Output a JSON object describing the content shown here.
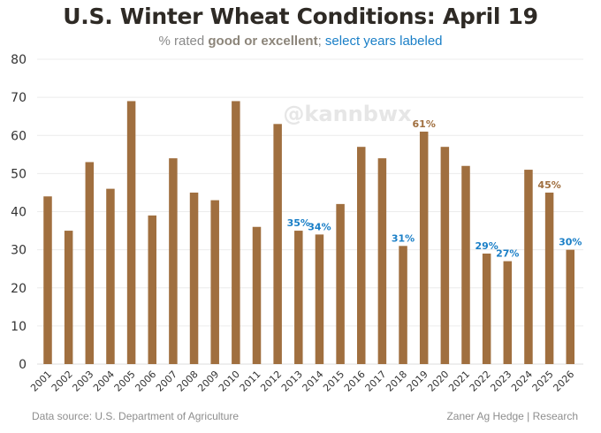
{
  "header": {
    "title": "U.S. Winter Wheat Conditions: April 19",
    "subtitle_prefix": "% rated ",
    "subtitle_bold": "good or excellent",
    "subtitle_sep": "; ",
    "subtitle_highlight": "select years labeled"
  },
  "watermark": "@kannbwx",
  "footer": {
    "source": "Data source: U.S. Department of Agriculture",
    "credit": "Zaner Ag Hedge | Research"
  },
  "colors": {
    "bar": "#a06f3f",
    "label_blue": "#1a7fc7",
    "label_brown": "#a06f3f",
    "grid": "#ececec",
    "axis_text": "#333333"
  },
  "chart_data": {
    "type": "bar",
    "title": "U.S. Winter Wheat Conditions: April 19",
    "subtitle": "% rated good or excellent; select years labeled",
    "xlabel": "",
    "ylabel": "",
    "ylim": [
      0,
      80
    ],
    "yticks": [
      0,
      10,
      20,
      30,
      40,
      50,
      60,
      70,
      80
    ],
    "grid": true,
    "categories": [
      "2001",
      "2002",
      "2003",
      "2004",
      "2005",
      "2006",
      "2007",
      "2008",
      "2009",
      "2010",
      "2011",
      "2012",
      "2013",
      "2014",
      "2015",
      "2016",
      "2017",
      "2018",
      "2019",
      "2020",
      "2021",
      "2022",
      "2023",
      "2024",
      "2025",
      "2026"
    ],
    "values": [
      44,
      35,
      53,
      46,
      69,
      39,
      54,
      45,
      43,
      69,
      36,
      63,
      35,
      34,
      42,
      57,
      54,
      31,
      61,
      57,
      52,
      29,
      27,
      51,
      45,
      30
    ],
    "labels": [
      {
        "year": "2013",
        "text": "35%",
        "color": "blue"
      },
      {
        "year": "2014",
        "text": "34%",
        "color": "blue"
      },
      {
        "year": "2018",
        "text": "31%",
        "color": "blue"
      },
      {
        "year": "2019",
        "text": "61%",
        "color": "brown"
      },
      {
        "year": "2022",
        "text": "29%",
        "color": "blue"
      },
      {
        "year": "2023",
        "text": "27%",
        "color": "blue"
      },
      {
        "year": "2025",
        "text": "45%",
        "color": "brown"
      },
      {
        "year": "2026",
        "text": "30%",
        "color": "blue"
      }
    ]
  }
}
